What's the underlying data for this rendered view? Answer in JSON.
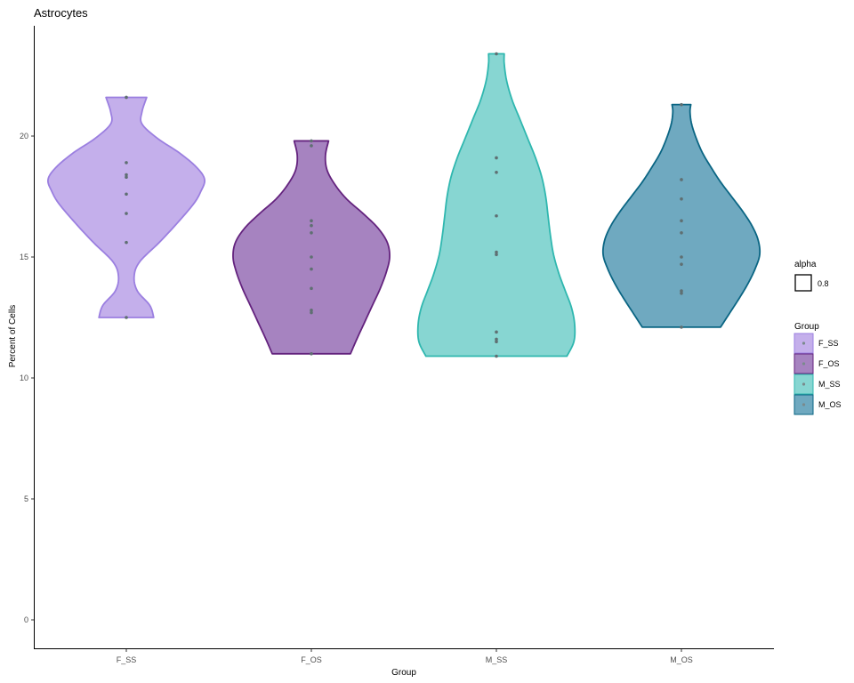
{
  "chart_data": {
    "type": "violin",
    "title": "Astrocytes",
    "xlabel": "Group",
    "ylabel": "Percent of Cells",
    "ylim": [
      -1.2,
      24.5
    ],
    "yticks": [
      0,
      5,
      10,
      15,
      20
    ],
    "categories": [
      "F_SS",
      "F_OS",
      "M_SS",
      "M_OS"
    ],
    "grid": false,
    "legend_placement": "right",
    "alpha_legend": {
      "title": "alpha",
      "label": "0.8"
    },
    "group_legend_title": "Group",
    "series": [
      {
        "name": "F_SS",
        "fill": "#C4AFEB",
        "stroke": "#9B7FE0",
        "point_color": "#9B7FE0",
        "min": 12.5,
        "max": 21.6,
        "density": [
          [
            12.5,
            0.35
          ],
          [
            13.0,
            0.3
          ],
          [
            13.6,
            0.14
          ],
          [
            14.2,
            0.1
          ],
          [
            14.8,
            0.17
          ],
          [
            15.6,
            0.42
          ],
          [
            16.4,
            0.65
          ],
          [
            17.2,
            0.86
          ],
          [
            17.7,
            0.95
          ],
          [
            18.2,
            1.0
          ],
          [
            18.7,
            0.9
          ],
          [
            19.3,
            0.68
          ],
          [
            19.9,
            0.4
          ],
          [
            20.5,
            0.2
          ],
          [
            21.0,
            0.2
          ],
          [
            21.6,
            0.26
          ]
        ],
        "points": [
          21.6,
          18.9,
          18.4,
          18.3,
          17.6,
          16.8,
          15.6,
          12.5
        ]
      },
      {
        "name": "F_OS",
        "fill": "#A683C0",
        "stroke": "#64237E",
        "point_color": "#7A3F9A",
        "min": 11.0,
        "max": 19.8,
        "density": [
          [
            11.0,
            0.5
          ],
          [
            11.6,
            0.58
          ],
          [
            12.3,
            0.68
          ],
          [
            13.0,
            0.78
          ],
          [
            13.7,
            0.88
          ],
          [
            14.4,
            0.96
          ],
          [
            15.0,
            1.0
          ],
          [
            15.6,
            0.97
          ],
          [
            16.2,
            0.85
          ],
          [
            16.8,
            0.66
          ],
          [
            17.4,
            0.45
          ],
          [
            18.0,
            0.3
          ],
          [
            18.6,
            0.2
          ],
          [
            19.2,
            0.18
          ],
          [
            19.8,
            0.22
          ]
        ],
        "points": [
          19.8,
          19.6,
          16.5,
          16.3,
          16.0,
          15.0,
          14.5,
          13.7,
          12.8,
          12.7,
          11.0
        ]
      },
      {
        "name": "M_SS",
        "fill": "#87D6D2",
        "stroke": "#2FB7AF",
        "point_color": "#2FB7AF",
        "min": 10.9,
        "max": 23.4,
        "density": [
          [
            10.9,
            0.9
          ],
          [
            11.5,
            0.99
          ],
          [
            12.2,
            1.0
          ],
          [
            12.9,
            0.96
          ],
          [
            13.6,
            0.88
          ],
          [
            14.3,
            0.8
          ],
          [
            15.1,
            0.73
          ],
          [
            15.9,
            0.69
          ],
          [
            16.7,
            0.66
          ],
          [
            17.5,
            0.63
          ],
          [
            18.3,
            0.58
          ],
          [
            19.1,
            0.5
          ],
          [
            19.9,
            0.4
          ],
          [
            20.7,
            0.3
          ],
          [
            21.5,
            0.2
          ],
          [
            22.3,
            0.13
          ],
          [
            23.0,
            0.1
          ],
          [
            23.4,
            0.1
          ]
        ],
        "points": [
          23.4,
          19.1,
          18.5,
          16.7,
          15.2,
          15.1,
          11.9,
          11.6,
          11.5,
          10.9
        ]
      },
      {
        "name": "M_OS",
        "fill": "#6FA9C0",
        "stroke": "#0A6583",
        "point_color": "#0A6583",
        "min": 12.1,
        "max": 21.3,
        "density": [
          [
            12.1,
            0.5
          ],
          [
            12.7,
            0.62
          ],
          [
            13.3,
            0.74
          ],
          [
            13.9,
            0.85
          ],
          [
            14.5,
            0.94
          ],
          [
            15.1,
            1.0
          ],
          [
            15.7,
            0.98
          ],
          [
            16.3,
            0.9
          ],
          [
            16.9,
            0.78
          ],
          [
            17.5,
            0.64
          ],
          [
            18.1,
            0.5
          ],
          [
            18.7,
            0.38
          ],
          [
            19.3,
            0.27
          ],
          [
            19.9,
            0.19
          ],
          [
            20.5,
            0.13
          ],
          [
            21.0,
            0.11
          ],
          [
            21.3,
            0.12
          ]
        ],
        "points": [
          21.3,
          18.2,
          17.4,
          16.5,
          16.0,
          15.0,
          14.7,
          13.6,
          13.5,
          12.1
        ]
      }
    ]
  }
}
